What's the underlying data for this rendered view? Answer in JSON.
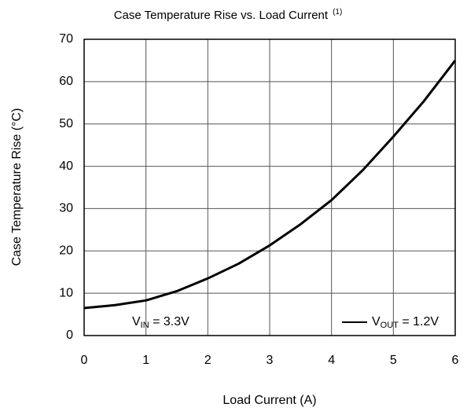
{
  "chart_data": {
    "type": "line",
    "title": "Case Temperature Rise vs. Load Current",
    "title_footnote": "(1)",
    "x_label": "Load Current (A)",
    "y_label": "Case Temperature Rise (°C)",
    "annotation": {
      "symbol": "V",
      "subscript": "IN",
      "text": " = 3.3V"
    },
    "x": [
      0,
      0.5,
      1,
      1.5,
      2,
      2.5,
      3,
      3.5,
      4,
      4.5,
      5,
      5.5,
      6
    ],
    "series": [
      {
        "name": {
          "symbol": "V",
          "subscript": "OUT",
          "text": " = 1.2V"
        },
        "color": "#000000",
        "values": [
          6.5,
          7.2,
          8.3,
          10.5,
          13.5,
          17,
          21.3,
          26.3,
          32,
          39,
          47,
          55.5,
          65
        ]
      }
    ],
    "xlim": [
      0,
      6
    ],
    "xticks": [
      0,
      1,
      2,
      3,
      4,
      5,
      6
    ],
    "ylim": [
      0,
      70
    ],
    "yticks": [
      0,
      10,
      20,
      30,
      40,
      50,
      60,
      70
    ],
    "grid": true,
    "legend": "lower right"
  }
}
